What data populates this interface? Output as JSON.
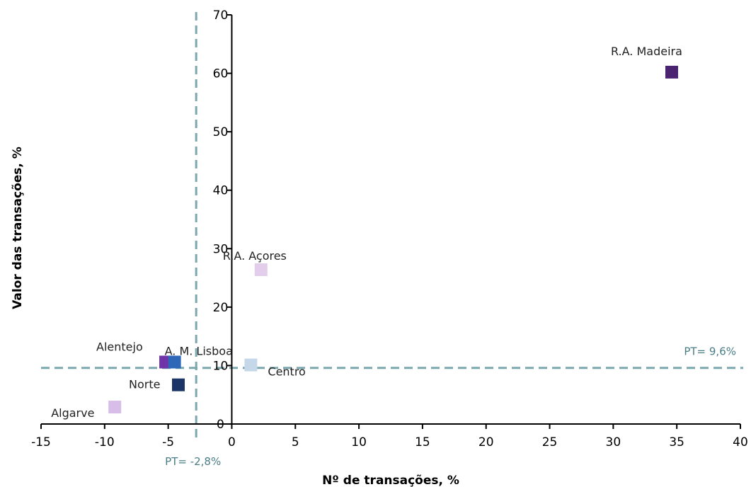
{
  "chart_data": {
    "type": "scatter",
    "title": "",
    "xlabel": "Nº de transações, %",
    "ylabel": "Valor das transações, %",
    "xlim": [
      -15,
      40
    ],
    "ylim": [
      0,
      70
    ],
    "x_ticks": [
      "-15",
      "-10",
      "-5",
      "0",
      "5",
      "10",
      "15",
      "20",
      "25",
      "30",
      "35",
      "40"
    ],
    "y_ticks": [
      "0",
      "10",
      "20",
      "30",
      "40",
      "50",
      "60",
      "70"
    ],
    "grid": false,
    "points": [
      {
        "label": "R.A. Madeira",
        "x": 34.6,
        "y": 60.2,
        "color": "#4a2470"
      },
      {
        "label": "R.A. Açores",
        "x": 2.3,
        "y": 26.4,
        "color": "#e2cdea"
      },
      {
        "label": "Alentejo",
        "x": -5.2,
        "y": 10.6,
        "color": "#6e34a8"
      },
      {
        "label": "A. M. Lisboa",
        "x": -4.5,
        "y": 10.6,
        "color": "#2e67b8"
      },
      {
        "label": "Centro",
        "x": 1.5,
        "y": 10.1,
        "color": "#c5d8ea"
      },
      {
        "label": "Norte",
        "x": -4.2,
        "y": 6.7,
        "color": "#1a3566"
      },
      {
        "label": "Algarve",
        "x": -9.2,
        "y": 2.9,
        "color": "#d7bde8"
      }
    ],
    "reference_lines": [
      {
        "axis": "y",
        "value": 9.6,
        "label": "PT= 9,6%",
        "color": "#7ba7ae"
      },
      {
        "axis": "x",
        "value": -2.8,
        "label": "PT= -2,8%",
        "color": "#7ba7ae"
      }
    ]
  }
}
